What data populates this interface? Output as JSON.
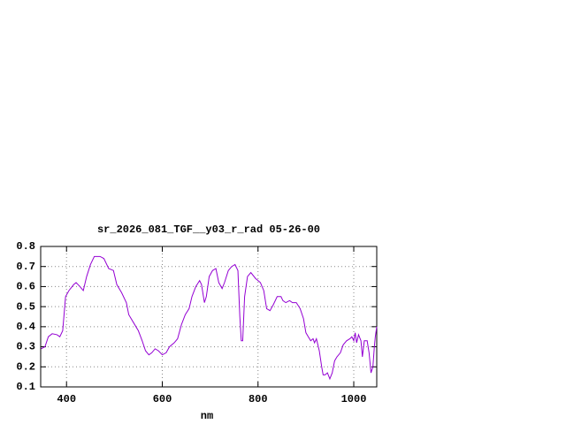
{
  "chart_data": {
    "type": "line",
    "title": "sr_2026_081_TGF__y03_r_rad 05-26-00",
    "x_label": "nm",
    "x": [
      347,
      355,
      362,
      370,
      380,
      386,
      392,
      398,
      405,
      415,
      420,
      428,
      435,
      442,
      450,
      458,
      470,
      478,
      488,
      498,
      505,
      515,
      525,
      530,
      540,
      550,
      558,
      565,
      572,
      578,
      585,
      592,
      600,
      608,
      615,
      625,
      632,
      640,
      648,
      656,
      662,
      670,
      678,
      682,
      688,
      692,
      698,
      705,
      712,
      718,
      725,
      730,
      738,
      745,
      752,
      758,
      762,
      765,
      768,
      772,
      778,
      785,
      795,
      805,
      812,
      818,
      825,
      832,
      840,
      848,
      852,
      858,
      866,
      872,
      880,
      888,
      895,
      900,
      905,
      910,
      915,
      918,
      922,
      928,
      933,
      936,
      940,
      945,
      950,
      955,
      960,
      965,
      972,
      978,
      985,
      992,
      996,
      1000,
      1003,
      1006,
      1010,
      1015,
      1018,
      1022,
      1028,
      1032,
      1036,
      1040,
      1043,
      1045,
      1048
    ],
    "series": [
      {
        "name": "sr_2026_081_TGF__y03_r_rad",
        "color": "#9400d3",
        "values": [
          0.29,
          0.3,
          0.35,
          0.365,
          0.36,
          0.35,
          0.38,
          0.55,
          0.58,
          0.61,
          0.62,
          0.6,
          0.58,
          0.65,
          0.71,
          0.75,
          0.75,
          0.74,
          0.69,
          0.68,
          0.61,
          0.57,
          0.52,
          0.46,
          0.42,
          0.38,
          0.33,
          0.28,
          0.26,
          0.27,
          0.29,
          0.28,
          0.26,
          0.27,
          0.3,
          0.32,
          0.34,
          0.41,
          0.46,
          0.49,
          0.55,
          0.6,
          0.63,
          0.61,
          0.52,
          0.55,
          0.65,
          0.68,
          0.69,
          0.62,
          0.59,
          0.62,
          0.68,
          0.7,
          0.71,
          0.68,
          0.45,
          0.33,
          0.33,
          0.55,
          0.65,
          0.67,
          0.64,
          0.62,
          0.58,
          0.49,
          0.48,
          0.51,
          0.55,
          0.55,
          0.53,
          0.52,
          0.53,
          0.52,
          0.52,
          0.49,
          0.44,
          0.37,
          0.35,
          0.33,
          0.34,
          0.32,
          0.34,
          0.28,
          0.2,
          0.16,
          0.16,
          0.17,
          0.14,
          0.17,
          0.23,
          0.25,
          0.27,
          0.31,
          0.33,
          0.34,
          0.35,
          0.33,
          0.37,
          0.32,
          0.36,
          0.33,
          0.25,
          0.33,
          0.33,
          0.27,
          0.17,
          0.2,
          0.3,
          0.35,
          0.4
        ]
      }
    ],
    "xlim": [
      346,
      1048
    ],
    "ylim": [
      0.1,
      0.8
    ],
    "xticks": [
      400,
      600,
      800,
      1000
    ],
    "yticks": [
      0.1,
      0.2,
      0.3,
      0.4,
      0.5,
      0.6,
      0.7,
      0.8
    ],
    "grid": true
  }
}
